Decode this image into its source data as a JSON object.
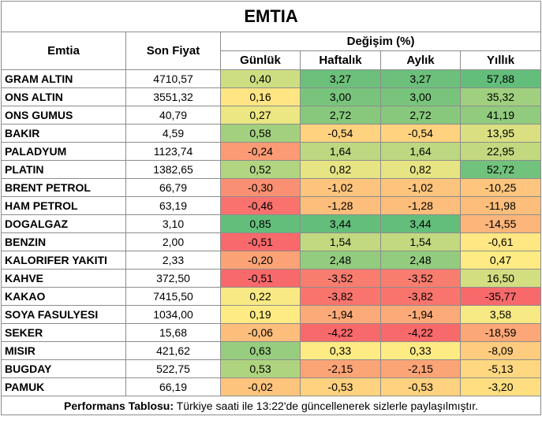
{
  "title": "EMTIA",
  "headers": {
    "emtia": "Emtia",
    "son_fiyat": "Son Fiyat",
    "degisim": "Değişim (%)",
    "gunluk": "Günlük",
    "haftalik": "Haftalık",
    "aylik": "Aylık",
    "yillik": "Yıllık"
  },
  "rows": [
    {
      "name": "GRAM ALTIN",
      "price": "4710,57",
      "daily": "0,40",
      "weekly": "3,27",
      "monthly": "3,27",
      "yearly": "57,88"
    },
    {
      "name": "ONS ALTIN",
      "price": "3551,32",
      "daily": "0,16",
      "weekly": "3,00",
      "monthly": "3,00",
      "yearly": "35,32"
    },
    {
      "name": "ONS GUMUS",
      "price": "40,79",
      "daily": "0,27",
      "weekly": "2,72",
      "monthly": "2,72",
      "yearly": "41,19"
    },
    {
      "name": "BAKIR",
      "price": "4,59",
      "daily": "0,58",
      "weekly": "-0,54",
      "monthly": "-0,54",
      "yearly": "13,95"
    },
    {
      "name": "PALADYUM",
      "price": "1123,74",
      "daily": "-0,24",
      "weekly": "1,64",
      "monthly": "1,64",
      "yearly": "22,95"
    },
    {
      "name": "PLATIN",
      "price": "1382,65",
      "daily": "0,52",
      "weekly": "0,82",
      "monthly": "0,82",
      "yearly": "52,72"
    },
    {
      "name": "BRENT PETROL",
      "price": "66,79",
      "daily": "-0,30",
      "weekly": "-1,02",
      "monthly": "-1,02",
      "yearly": "-10,25"
    },
    {
      "name": "HAM PETROL",
      "price": "63,19",
      "daily": "-0,46",
      "weekly": "-1,28",
      "monthly": "-1,28",
      "yearly": "-11,98"
    },
    {
      "name": "DOGALGAZ",
      "price": "3,10",
      "daily": "0,85",
      "weekly": "3,44",
      "monthly": "3,44",
      "yearly": "-14,55"
    },
    {
      "name": "BENZIN",
      "price": "2,00",
      "daily": "-0,51",
      "weekly": "1,54",
      "monthly": "1,54",
      "yearly": "-0,61"
    },
    {
      "name": "KALORIFER YAKITI",
      "price": "2,33",
      "daily": "-0,20",
      "weekly": "2,48",
      "monthly": "2,48",
      "yearly": "0,47"
    },
    {
      "name": "KAHVE",
      "price": "372,50",
      "daily": "-0,51",
      "weekly": "-3,52",
      "monthly": "-3,52",
      "yearly": "16,50"
    },
    {
      "name": "KAKAO",
      "price": "7415,50",
      "daily": "0,22",
      "weekly": "-3,82",
      "monthly": "-3,82",
      "yearly": "-35,77"
    },
    {
      "name": "SOYA FASULYESI",
      "price": "1034,00",
      "daily": "0,19",
      "weekly": "-1,94",
      "monthly": "-1,94",
      "yearly": "3,58"
    },
    {
      "name": "SEKER",
      "price": "15,68",
      "daily": "-0,06",
      "weekly": "-4,22",
      "monthly": "-4,22",
      "yearly": "-18,59"
    },
    {
      "name": "MISIR",
      "price": "421,62",
      "daily": "0,63",
      "weekly": "0,33",
      "monthly": "0,33",
      "yearly": "-8,09"
    },
    {
      "name": "BUGDAY",
      "price": "522,75",
      "daily": "0,53",
      "weekly": "-2,15",
      "monthly": "-2,15",
      "yearly": "-5,13"
    },
    {
      "name": "PAMUK",
      "price": "66,19",
      "daily": "-0,02",
      "weekly": "-0,53",
      "monthly": "-0,53",
      "yearly": "-3,20"
    }
  ],
  "colors": {
    "green": "#63be7b",
    "yellow": "#ffeb84",
    "red": "#f8696b"
  },
  "footer": {
    "label": "Performans Tablosu:",
    "text": " Türkiye saati ile 13:22'de güncellenerek sizlerle paylaşılmıştır."
  }
}
